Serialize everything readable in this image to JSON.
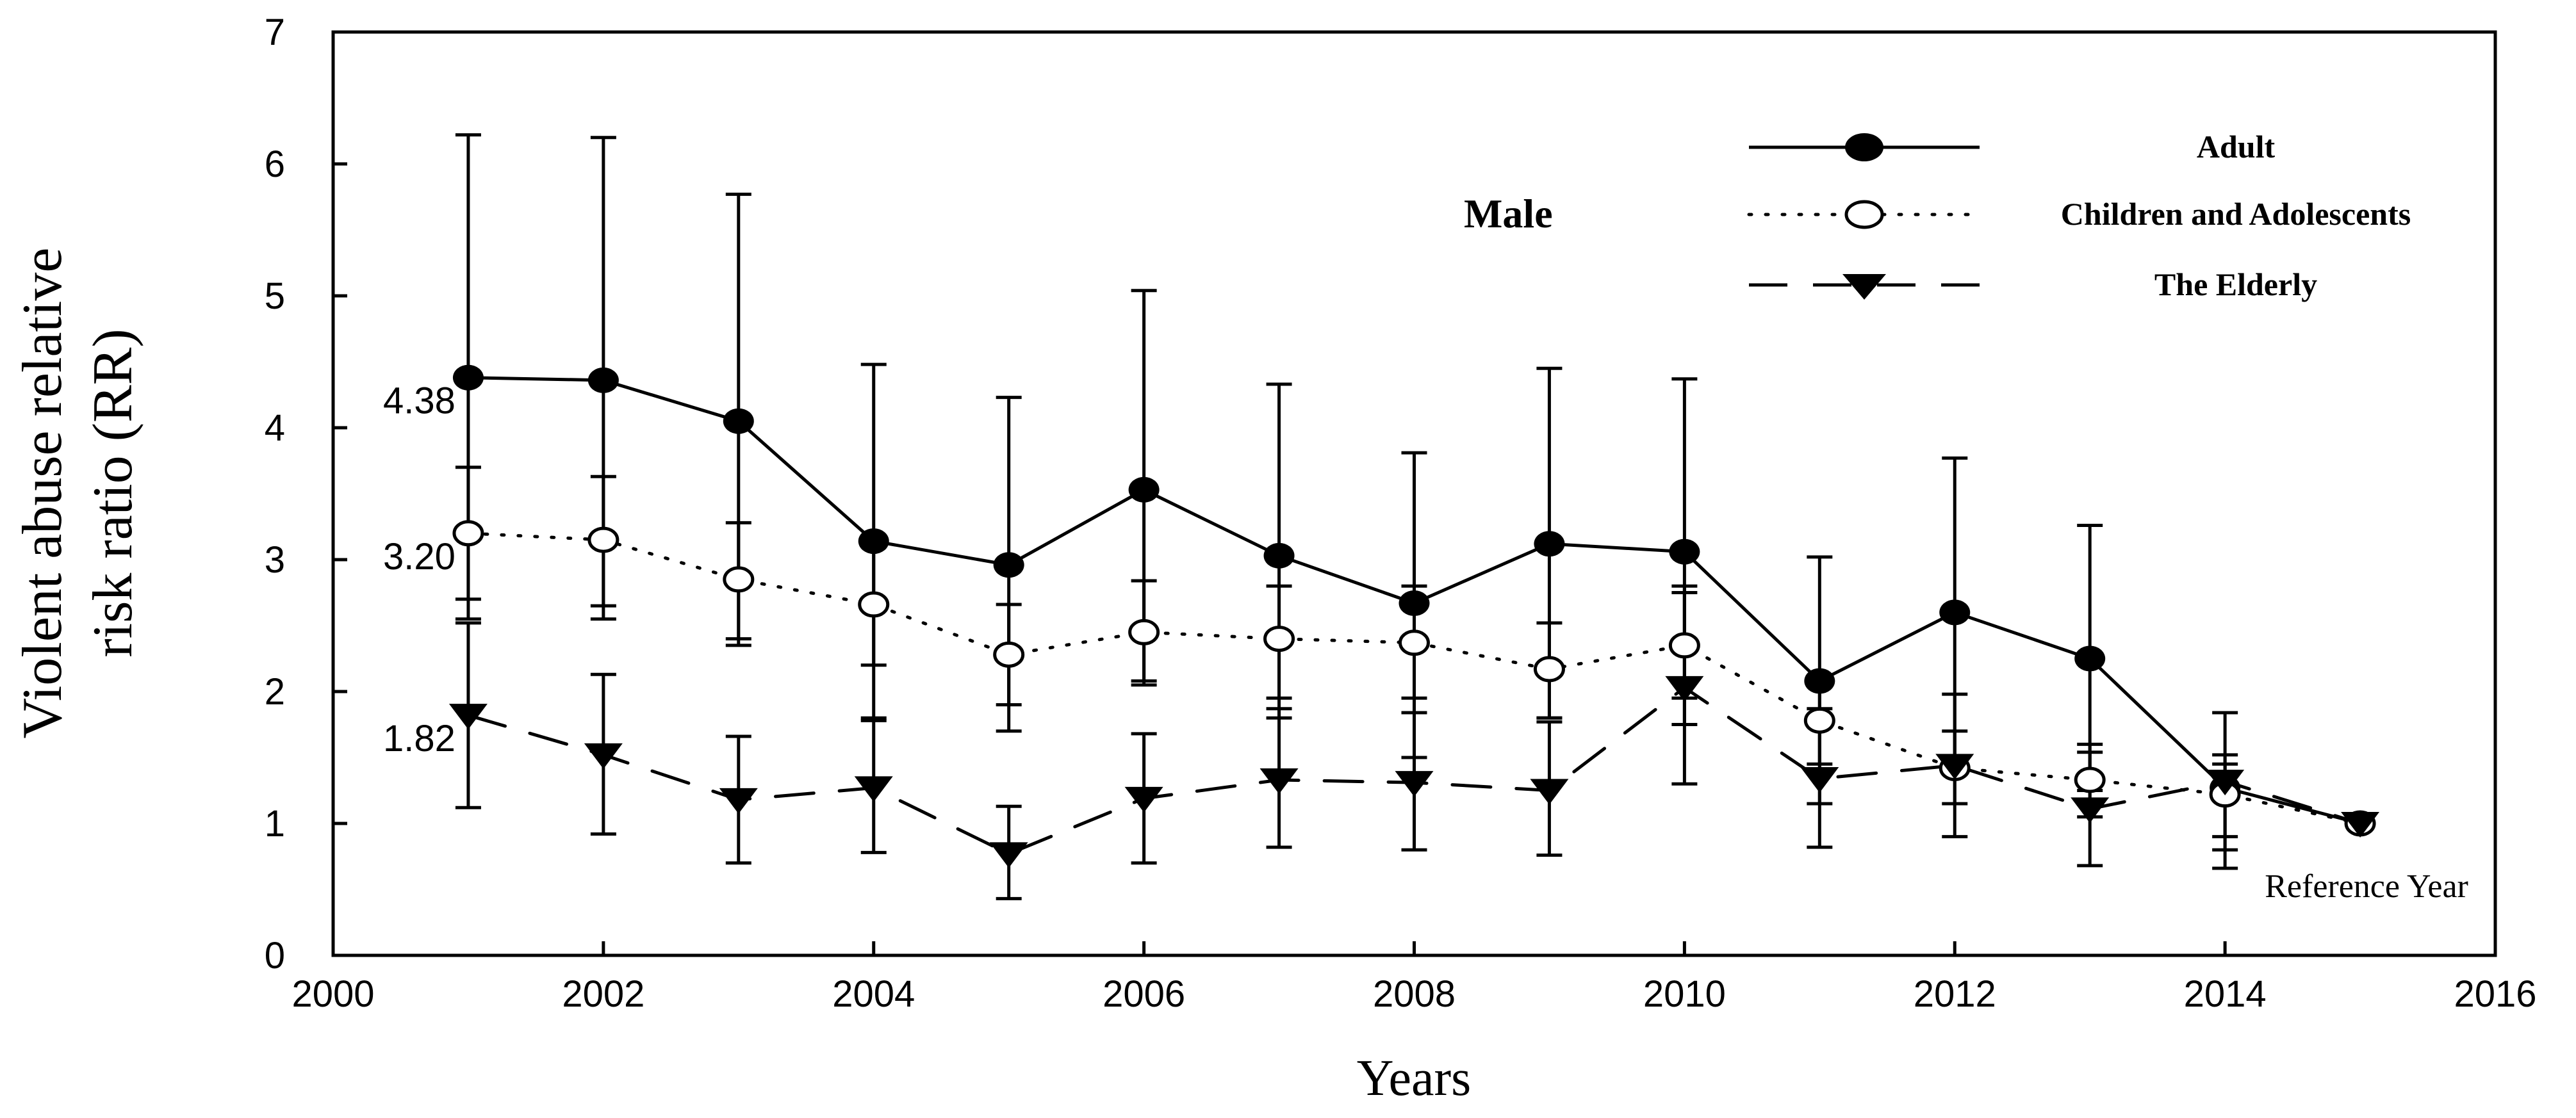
{
  "chart_data": {
    "type": "line",
    "title": "",
    "panel_label": "Male",
    "xlabel": "Years",
    "ylabel_lines": [
      "Violent abuse relative",
      "risk ratio (RR)"
    ],
    "xlim": [
      2000,
      2016
    ],
    "ylim": [
      0,
      7
    ],
    "x_ticks": [
      "2000",
      "2002",
      "2004",
      "2006",
      "2008",
      "2010",
      "2012",
      "2014",
      "2016"
    ],
    "y_ticks": [
      "0",
      "1",
      "2",
      "3",
      "4",
      "5",
      "6",
      "7"
    ],
    "x": [
      2001,
      2002,
      2003,
      2004,
      2005,
      2006,
      2007,
      2008,
      2009,
      2010,
      2011,
      2012,
      2013,
      2014,
      2015
    ],
    "series": [
      {
        "name": "Adult",
        "style": "solid",
        "marker": "filled-circle",
        "values": [
          4.38,
          4.36,
          4.05,
          3.14,
          2.96,
          3.53,
          3.03,
          2.67,
          3.12,
          3.06,
          2.08,
          2.6,
          2.25,
          1.27,
          1.0
        ],
        "err_low": [
          2.55,
          2.55,
          2.35,
          1.8,
          1.7,
          2.05,
          1.8,
          1.5,
          1.8,
          1.75,
          1.15,
          1.45,
          1.25,
          0.8,
          1.0
        ],
        "err_high": [
          6.22,
          6.2,
          5.77,
          4.48,
          4.23,
          5.04,
          4.33,
          3.81,
          4.45,
          4.37,
          3.02,
          3.77,
          3.26,
          1.84,
          1.0
        ]
      },
      {
        "name": "Children and Adolescents",
        "style": "dotted",
        "marker": "open-circle",
        "values": [
          3.2,
          3.15,
          2.85,
          2.66,
          2.28,
          2.45,
          2.4,
          2.37,
          2.17,
          2.35,
          1.78,
          1.42,
          1.33,
          1.22,
          1.0
        ],
        "err_low": [
          2.7,
          2.65,
          2.4,
          2.2,
          1.9,
          2.08,
          1.95,
          1.95,
          1.8,
          1.95,
          1.45,
          1.15,
          1.05,
          0.9,
          1.0
        ],
        "err_high": [
          3.7,
          3.63,
          3.28,
          3.1,
          2.66,
          2.84,
          2.8,
          2.8,
          2.52,
          2.75,
          2.12,
          1.7,
          1.6,
          1.52,
          1.0
        ]
      },
      {
        "name": "The Elderly",
        "style": "dashed",
        "marker": "filled-triangle-down",
        "values": [
          1.82,
          1.52,
          1.18,
          1.27,
          0.77,
          1.19,
          1.33,
          1.31,
          1.25,
          2.03,
          1.34,
          1.44,
          1.11,
          1.32,
          1.0
        ],
        "err_low": [
          1.12,
          0.92,
          0.7,
          0.78,
          0.43,
          0.7,
          0.82,
          0.8,
          0.76,
          1.3,
          0.82,
          0.9,
          0.68,
          0.66,
          1.0
        ],
        "err_high": [
          2.52,
          2.13,
          1.66,
          1.78,
          1.13,
          1.68,
          1.87,
          1.84,
          1.77,
          2.8,
          1.87,
          1.98,
          1.54,
          1.45,
          1.0
        ]
      }
    ],
    "value_labels": [
      {
        "text": "4.38",
        "x": 2001,
        "y": 4.38
      },
      {
        "text": "3.20",
        "x": 2001,
        "y": 3.2
      },
      {
        "text": "1.82",
        "x": 2001,
        "y": 1.82
      }
    ],
    "annotations": [
      {
        "text": "Reference Year",
        "x": 2015,
        "y": 1.0
      }
    ],
    "legend_position": "top-right"
  }
}
